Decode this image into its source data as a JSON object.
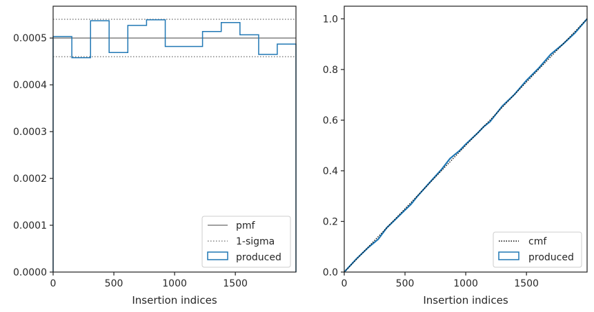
{
  "chart_data": [
    {
      "type": "step",
      "xlabel": "Insertion indices",
      "ylabel": "",
      "xlim": [
        0,
        1999
      ],
      "ylim": [
        0,
        0.000568
      ],
      "xticks": [
        0,
        500,
        1000,
        1500
      ],
      "xtick_labels": [
        "0",
        "500",
        "1000",
        "1500"
      ],
      "yticks": [
        0,
        0.0001,
        0.0002,
        0.0003,
        0.0004,
        0.0005
      ],
      "ytick_labels": [
        "0.0000",
        "0.0001",
        "0.0002",
        "0.0003",
        "0.0004",
        "0.0005"
      ],
      "pmf": 0.0005,
      "sigma": [
        0.00046,
        0.00054
      ],
      "bin_edges": [
        0,
        154,
        308,
        461,
        615,
        769,
        923,
        1076,
        1230,
        1384,
        1538,
        1692,
        1845,
        1999
      ],
      "produced": [
        0.000503,
        0.000458,
        0.000537,
        0.000469,
        0.000527,
        0.000539,
        0.000482,
        0.000482,
        0.000514,
        0.000533,
        0.000507,
        0.000465,
        0.000487
      ],
      "legend": {
        "position": "lower right",
        "entries": [
          {
            "label": "pmf",
            "style": "solid-line",
            "color": "#808080"
          },
          {
            "label": "1-sigma",
            "style": "dotted-line",
            "color": "#808080"
          },
          {
            "label": "produced",
            "style": "box",
            "color": "#1f77b4"
          }
        ]
      }
    },
    {
      "type": "line",
      "xlabel": "Insertion indices",
      "ylabel": "",
      "xlim": [
        0,
        1999
      ],
      "ylim": [
        0,
        1.05
      ],
      "xticks": [
        0,
        500,
        1000,
        1500
      ],
      "xtick_labels": [
        "0",
        "500",
        "1000",
        "1500"
      ],
      "yticks": [
        0,
        0.2,
        0.4,
        0.6,
        0.8,
        1.0
      ],
      "ytick_labels": [
        "0.0",
        "0.2",
        "0.4",
        "0.6",
        "0.8",
        "1.0"
      ],
      "cmf": {
        "x": [
          0,
          1999
        ],
        "y": [
          0,
          1.0
        ]
      },
      "produced": {
        "x": [
          0,
          100,
          200,
          280,
          350,
          400,
          500,
          550,
          600,
          700,
          800,
          870,
          950,
          1000,
          1100,
          1150,
          1200,
          1300,
          1400,
          1500,
          1600,
          1700,
          1800,
          1900,
          1999
        ],
        "y": [
          0,
          0.052,
          0.098,
          0.13,
          0.175,
          0.198,
          0.245,
          0.268,
          0.298,
          0.352,
          0.405,
          0.448,
          0.48,
          0.505,
          0.55,
          0.575,
          0.594,
          0.655,
          0.701,
          0.757,
          0.805,
          0.86,
          0.9,
          0.945,
          1.0
        ]
      },
      "legend": {
        "position": "lower right",
        "entries": [
          {
            "label": "cmf",
            "style": "dotted-line",
            "color": "#000000"
          },
          {
            "label": "produced",
            "style": "box",
            "color": "#1f77b4"
          }
        ]
      }
    }
  ]
}
